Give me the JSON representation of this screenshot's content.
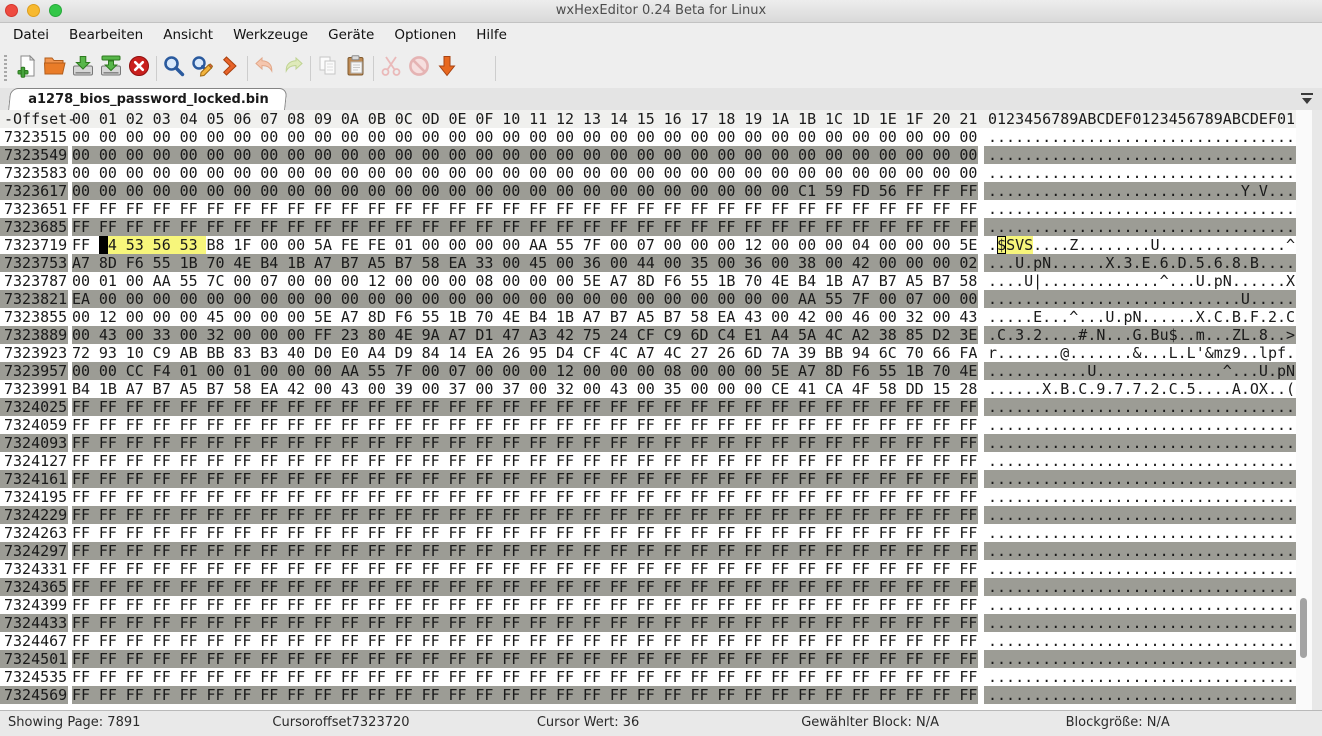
{
  "window": {
    "title": "wxHexEditor 0.24 Beta for Linux"
  },
  "menu": {
    "items": [
      {
        "id": "datei",
        "label": "Datei"
      },
      {
        "id": "bearbeiten",
        "label": "Bearbeiten"
      },
      {
        "id": "ansicht",
        "label": "Ansicht"
      },
      {
        "id": "werkzeuge",
        "label": "Werkzeuge"
      },
      {
        "id": "geraete",
        "label": "Geräte"
      },
      {
        "id": "optionen",
        "label": "Optionen"
      },
      {
        "id": "hilfe",
        "label": "Hilfe"
      }
    ]
  },
  "toolbar": {
    "items": [
      {
        "type": "button",
        "id": "new-file",
        "enabled": true
      },
      {
        "type": "button",
        "id": "open-file",
        "enabled": true
      },
      {
        "type": "button",
        "id": "save",
        "enabled": true
      },
      {
        "type": "button",
        "id": "save-as",
        "enabled": true
      },
      {
        "type": "button",
        "id": "close-file",
        "enabled": true
      },
      {
        "type": "separator"
      },
      {
        "type": "button",
        "id": "find",
        "enabled": true
      },
      {
        "type": "button",
        "id": "find-replace",
        "enabled": true
      },
      {
        "type": "button",
        "id": "goto-offset",
        "enabled": true
      },
      {
        "type": "separator"
      },
      {
        "type": "button",
        "id": "undo",
        "enabled": false
      },
      {
        "type": "button",
        "id": "redo",
        "enabled": false
      },
      {
        "type": "separator"
      },
      {
        "type": "button",
        "id": "copy",
        "enabled": false
      },
      {
        "type": "button",
        "id": "paste",
        "enabled": true
      },
      {
        "type": "separator"
      },
      {
        "type": "button",
        "id": "cut",
        "enabled": false
      },
      {
        "type": "button",
        "id": "abort",
        "enabled": false
      },
      {
        "type": "button",
        "id": "download",
        "enabled": true
      }
    ]
  },
  "tab": {
    "label": "a1278_bios_password_locked.bin"
  },
  "hex_header": {
    "offset_label": "-Offset-",
    "columns": [
      "00",
      "01",
      "02",
      "03",
      "04",
      "05",
      "06",
      "07",
      "08",
      "09",
      "0A",
      "0B",
      "0C",
      "0D",
      "0E",
      "0F",
      "10",
      "11",
      "12",
      "13",
      "14",
      "15",
      "16",
      "17",
      "18",
      "19",
      "1A",
      "1B",
      "1C",
      "1D",
      "1E",
      "1F",
      "20",
      "21"
    ],
    "ascii_label": "0123456789ABCDEF0123456789ABCDEF01"
  },
  "selection": {
    "row_offset": "7323719",
    "start": 1,
    "end": 4,
    "cursor": 1,
    "selected_text": "$SVS"
  },
  "colors": {
    "highlight": "#f7f67b",
    "shaded_row": "#9c9c95",
    "cursor": "#000000"
  },
  "hex_rows": [
    {
      "offset": "7323515",
      "bytes": "00 00 00 00 00 00 00 00 00 00 00 00 00 00 00 00 00 00 00 00 00 00 00 00 00 00 00 00 00 00 00 00 00 00",
      "ascii": ".................................."
    },
    {
      "offset": "7323549",
      "bytes": "00 00 00 00 00 00 00 00 00 00 00 00 00 00 00 00 00 00 00 00 00 00 00 00 00 00 00 00 00 00 00 00 00 00",
      "ascii": ".................................."
    },
    {
      "offset": "7323583",
      "bytes": "00 00 00 00 00 00 00 00 00 00 00 00 00 00 00 00 00 00 00 00 00 00 00 00 00 00 00 00 00 00 00 00 00 00",
      "ascii": ".................................."
    },
    {
      "offset": "7323617",
      "bytes": "00 00 00 00 00 00 00 00 00 00 00 00 00 00 00 00 00 00 00 00 00 00 00 00 00 00 00 C1 59 FD 56 FF FF FF",
      "ascii": "............................Y.V..."
    },
    {
      "offset": "7323651",
      "bytes": "FF FF FF FF FF FF FF FF FF FF FF FF FF FF FF FF FF FF FF FF FF FF FF FF FF FF FF FF FF FF FF FF FF FF",
      "ascii": ".................................."
    },
    {
      "offset": "7323685",
      "bytes": "FF FF FF FF FF FF FF FF FF FF FF FF FF FF FF FF FF FF FF FF FF FF FF FF FF FF FF FF FF FF FF FF FF FF",
      "ascii": ".................................."
    },
    {
      "offset": "7323719",
      "bytes": "FF 24 53 56 53 B8 1F 00 00 5A FE FE 01 00 00 00 00 AA 55 7F 00 07 00 00 00 12 00 00 00 04 00 00 00 5E",
      "ascii": ".$SVS....Z........U..............^"
    },
    {
      "offset": "7323753",
      "bytes": "A7 8D F6 55 1B 70 4E B4 1B A7 B7 A5 B7 58 EA 33 00 45 00 36 00 44 00 35 00 36 00 38 00 42 00 00 00 02",
      "ascii": "...U.pN......X.3.E.6.D.5.6.8.B...."
    },
    {
      "offset": "7323787",
      "bytes": "00 01 00 AA 55 7C 00 07 00 00 00 12 00 00 00 08 00 00 00 5E A7 8D F6 55 1B 70 4E B4 1B A7 B7 A5 B7 58",
      "ascii": "....U|.............^...U.pN......X"
    },
    {
      "offset": "7323821",
      "bytes": "EA 00 00 00 00 00 00 00 00 00 00 00 00 00 00 00 00 00 00 00 00 00 00 00 00 00 00 AA 55 7F 00 07 00 00",
      "ascii": "............................U....."
    },
    {
      "offset": "7323855",
      "bytes": "00 12 00 00 00 45 00 00 00 5E A7 8D F6 55 1B 70 4E B4 1B A7 B7 A5 B7 58 EA 43 00 42 00 46 00 32 00 43",
      "ascii": ".....E...^...U.pN......X.C.B.F.2.C"
    },
    {
      "offset": "7323889",
      "bytes": "00 43 00 33 00 32 00 00 00 FF 23 80 4E 9A A7 D1 47 A3 42 75 24 CF C9 6D C4 E1 A4 5A 4C A2 38 85 D2 3E",
      "ascii": ".C.3.2....#.N...G.Bu$..m...ZL.8..>"
    },
    {
      "offset": "7323923",
      "bytes": "72 93 10 C9 AB BB 83 B3 40 D0 E0 A4 D9 84 14 EA 26 95 D4 CF 4C A7 4C 27 26 6D 7A 39 BB 94 6C 70 66 FA",
      "ascii": "r.......@.......&...L.L'&mz9..lpf."
    },
    {
      "offset": "7323957",
      "bytes": "00 00 CC F4 01 00 01 00 00 00 AA 55 7F 00 07 00 00 00 12 00 00 00 08 00 00 00 5E A7 8D F6 55 1B 70 4E",
      "ascii": "...........U..............^...U.pN"
    },
    {
      "offset": "7323991",
      "bytes": "B4 1B A7 B7 A5 B7 58 EA 42 00 43 00 39 00 37 00 37 00 32 00 43 00 35 00 00 00 CE 41 CA 4F 58 DD 15 28",
      "ascii": "......X.B.C.9.7.7.2.C.5....A.OX..("
    },
    {
      "offset": "7324025",
      "bytes": "FF FF FF FF FF FF FF FF FF FF FF FF FF FF FF FF FF FF FF FF FF FF FF FF FF FF FF FF FF FF FF FF FF FF",
      "ascii": ".................................."
    },
    {
      "offset": "7324059",
      "bytes": "FF FF FF FF FF FF FF FF FF FF FF FF FF FF FF FF FF FF FF FF FF FF FF FF FF FF FF FF FF FF FF FF FF FF",
      "ascii": ".................................."
    },
    {
      "offset": "7324093",
      "bytes": "FF FF FF FF FF FF FF FF FF FF FF FF FF FF FF FF FF FF FF FF FF FF FF FF FF FF FF FF FF FF FF FF FF FF",
      "ascii": ".................................."
    },
    {
      "offset": "7324127",
      "bytes": "FF FF FF FF FF FF FF FF FF FF FF FF FF FF FF FF FF FF FF FF FF FF FF FF FF FF FF FF FF FF FF FF FF FF",
      "ascii": ".................................."
    },
    {
      "offset": "7324161",
      "bytes": "FF FF FF FF FF FF FF FF FF FF FF FF FF FF FF FF FF FF FF FF FF FF FF FF FF FF FF FF FF FF FF FF FF FF",
      "ascii": ".................................."
    },
    {
      "offset": "7324195",
      "bytes": "FF FF FF FF FF FF FF FF FF FF FF FF FF FF FF FF FF FF FF FF FF FF FF FF FF FF FF FF FF FF FF FF FF FF",
      "ascii": ".................................."
    },
    {
      "offset": "7324229",
      "bytes": "FF FF FF FF FF FF FF FF FF FF FF FF FF FF FF FF FF FF FF FF FF FF FF FF FF FF FF FF FF FF FF FF FF FF",
      "ascii": ".................................."
    },
    {
      "offset": "7324263",
      "bytes": "FF FF FF FF FF FF FF FF FF FF FF FF FF FF FF FF FF FF FF FF FF FF FF FF FF FF FF FF FF FF FF FF FF FF",
      "ascii": ".................................."
    },
    {
      "offset": "7324297",
      "bytes": "FF FF FF FF FF FF FF FF FF FF FF FF FF FF FF FF FF FF FF FF FF FF FF FF FF FF FF FF FF FF FF FF FF FF",
      "ascii": ".................................."
    },
    {
      "offset": "7324331",
      "bytes": "FF FF FF FF FF FF FF FF FF FF FF FF FF FF FF FF FF FF FF FF FF FF FF FF FF FF FF FF FF FF FF FF FF FF",
      "ascii": ".................................."
    },
    {
      "offset": "7324365",
      "bytes": "FF FF FF FF FF FF FF FF FF FF FF FF FF FF FF FF FF FF FF FF FF FF FF FF FF FF FF FF FF FF FF FF FF FF",
      "ascii": ".................................."
    },
    {
      "offset": "7324399",
      "bytes": "FF FF FF FF FF FF FF FF FF FF FF FF FF FF FF FF FF FF FF FF FF FF FF FF FF FF FF FF FF FF FF FF FF FF",
      "ascii": ".................................."
    },
    {
      "offset": "7324433",
      "bytes": "FF FF FF FF FF FF FF FF FF FF FF FF FF FF FF FF FF FF FF FF FF FF FF FF FF FF FF FF FF FF FF FF FF FF",
      "ascii": ".................................."
    },
    {
      "offset": "7324467",
      "bytes": "FF FF FF FF FF FF FF FF FF FF FF FF FF FF FF FF FF FF FF FF FF FF FF FF FF FF FF FF FF FF FF FF FF FF",
      "ascii": ".................................."
    },
    {
      "offset": "7324501",
      "bytes": "FF FF FF FF FF FF FF FF FF FF FF FF FF FF FF FF FF FF FF FF FF FF FF FF FF FF FF FF FF FF FF FF FF FF",
      "ascii": ".................................."
    },
    {
      "offset": "7324535",
      "bytes": "FF FF FF FF FF FF FF FF FF FF FF FF FF FF FF FF FF FF FF FF FF FF FF FF FF FF FF FF FF FF FF FF FF FF",
      "ascii": ".................................."
    },
    {
      "offset": "7324569",
      "bytes": "FF FF FF FF FF FF FF FF FF FF FF FF FF FF FF FF FF FF FF FF FF FF FF FF FF FF FF FF FF FF FF FF FF FF",
      "ascii": ".................................."
    }
  ],
  "status_bar": {
    "fields": [
      {
        "id": "showing-page",
        "label": "Showing Page: 7891"
      },
      {
        "id": "cursor-offset",
        "label": "Cursoroffset7323720"
      },
      {
        "id": "cursor-value",
        "label": "Cursor Wert: 36"
      },
      {
        "id": "selected-block",
        "label": "Gewählter Block: N/A"
      },
      {
        "id": "block-size",
        "label": "Blockgröße: N/A"
      }
    ]
  }
}
